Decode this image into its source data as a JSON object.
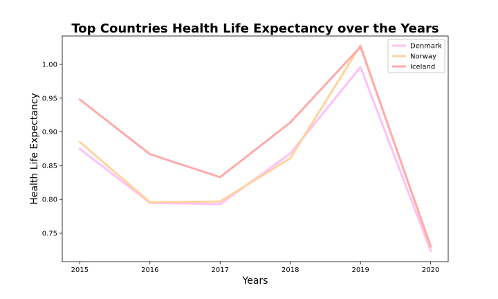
{
  "chart_data": {
    "type": "line",
    "title": "Top Countries Health Life Expectancy over the Years",
    "xlabel": "Years",
    "ylabel": "Health Life Expectancy",
    "x": [
      "2015",
      "2016",
      "2017",
      "2018",
      "2019",
      "2020"
    ],
    "xlim": [
      2014.75,
      2020.25
    ],
    "ylim": [
      0.708,
      1.042
    ],
    "yticks": [
      "0.75",
      "0.80",
      "0.85",
      "0.90",
      "0.95",
      "1.00"
    ],
    "grid": false,
    "legend_position": "top-right",
    "series": [
      {
        "name": "Denmark",
        "color": "#ffc0f8",
        "values": [
          0.875,
          0.795,
          0.793,
          0.868,
          0.996,
          0.724
        ]
      },
      {
        "name": "Norway",
        "color": "#ffd39b",
        "values": [
          0.885,
          0.796,
          0.797,
          0.861,
          1.028,
          0.729
        ]
      },
      {
        "name": "Iceland",
        "color": "#ffaaaa",
        "values": [
          0.948,
          0.867,
          0.833,
          0.914,
          1.026,
          0.731
        ]
      }
    ]
  }
}
